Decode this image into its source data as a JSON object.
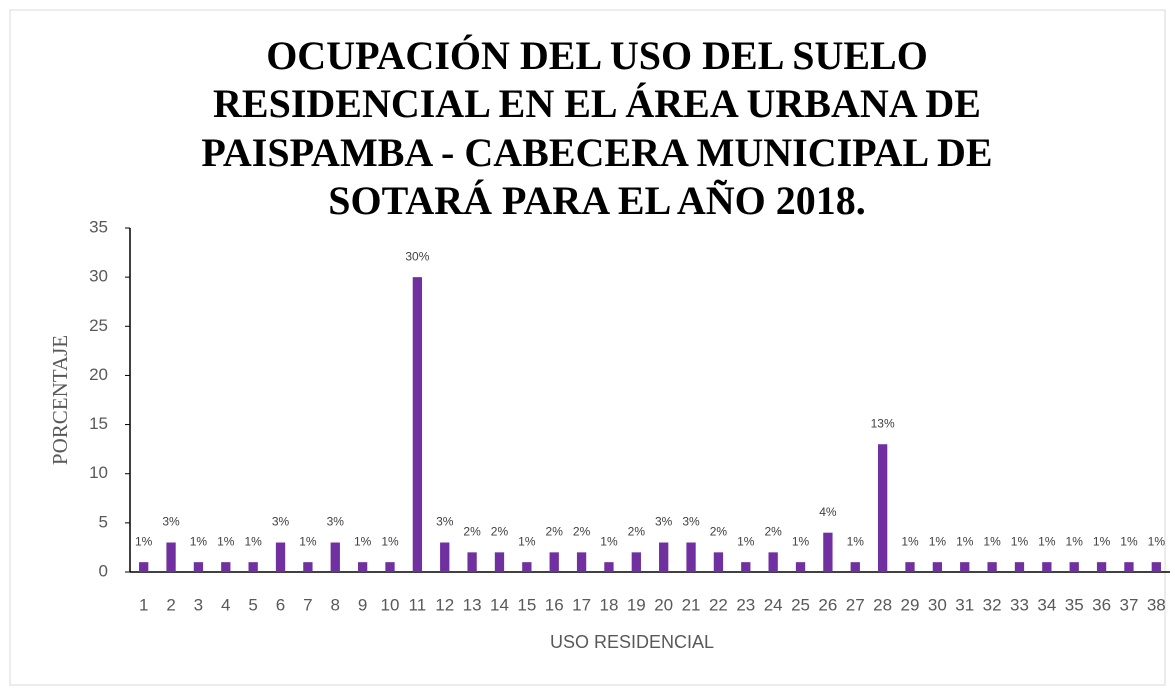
{
  "chart_data": {
    "type": "bar",
    "title": [
      "OCUPACIÓN DEL USO DEL SUELO",
      "RESIDENCIAL EN EL ÁREA URBANA DE",
      "PAISPAMBA - CABECERA MUNICIPAL DE",
      "SOTARÁ PARA EL AÑO 2018."
    ],
    "x_label": "USO RESIDENCIAL",
    "y_label": "PORCENTAJE",
    "categories": [
      "1",
      "2",
      "3",
      "4",
      "5",
      "6",
      "7",
      "8",
      "9",
      "10",
      "11",
      "12",
      "13",
      "14",
      "15",
      "16",
      "17",
      "18",
      "19",
      "20",
      "21",
      "22",
      "23",
      "24",
      "25",
      "26",
      "27",
      "28",
      "29",
      "30",
      "31",
      "32",
      "33",
      "34",
      "35",
      "36",
      "37",
      "38"
    ],
    "values": [
      1,
      3,
      1,
      1,
      1,
      3,
      1,
      3,
      1,
      1,
      30,
      3,
      2,
      2,
      1,
      2,
      2,
      1,
      2,
      3,
      3,
      2,
      1,
      2,
      1,
      4,
      1,
      13,
      1,
      1,
      1,
      1,
      1,
      1,
      1,
      1,
      1,
      1
    ],
    "value_labels": [
      "1%",
      "3%",
      "1%",
      "1%",
      "1%",
      "3%",
      "1%",
      "3%",
      "1%",
      "1%",
      "30%",
      "3%",
      "2%",
      "2%",
      "1%",
      "2%",
      "2%",
      "1%",
      "2%",
      "3%",
      "3%",
      "2%",
      "1%",
      "2%",
      "1%",
      "4%",
      "1%",
      "13%",
      "1%",
      "1%",
      "1%",
      "1%",
      "1%",
      "1%",
      "1%",
      "1%",
      "1%",
      "1%"
    ],
    "color": "#7030a0",
    "ylim": [
      0,
      35
    ],
    "yticks": [
      0,
      5,
      10,
      15,
      20,
      25,
      30,
      35
    ],
    "grid": false
  }
}
